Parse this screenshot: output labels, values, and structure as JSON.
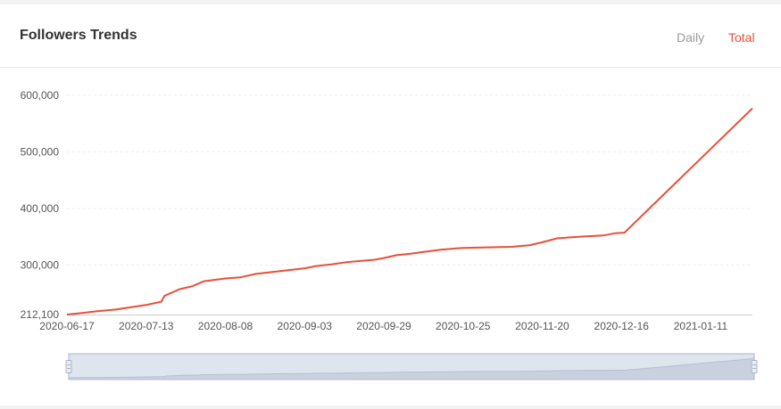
{
  "header": {
    "title": "Followers Trends",
    "toggles": [
      {
        "label": "Daily",
        "active": false
      },
      {
        "label": "Total",
        "active": true
      }
    ]
  },
  "colors": {
    "line": "#e8503a",
    "grid": "#eeeeee",
    "active_toggle": "#e8503a",
    "inactive_toggle": "#999999",
    "zoom_fill": "#dfe5ef",
    "zoom_border": "#a9b6cb"
  },
  "chart_data": {
    "type": "line",
    "title": "Followers Trends",
    "xlabel": "",
    "ylabel": "",
    "ylim": [
      212100,
      600000
    ],
    "y_ticks": [
      {
        "value": 212100,
        "label": "212,100"
      },
      {
        "value": 300000,
        "label": "300,000"
      },
      {
        "value": 400000,
        "label": "400,000"
      },
      {
        "value": 500000,
        "label": "500,000"
      },
      {
        "value": 600000,
        "label": "600,000"
      }
    ],
    "x_range": [
      "2020-06-17",
      "2021-01-28"
    ],
    "x_ticks": [
      "2020-06-17",
      "2020-07-13",
      "2020-08-08",
      "2020-09-03",
      "2020-09-29",
      "2020-10-25",
      "2020-11-20",
      "2020-12-16",
      "2021-01-11"
    ],
    "grid": true,
    "series": [
      {
        "values": [
          {
            "x": "2020-06-17",
            "y": 212100
          },
          {
            "x": "2020-06-22",
            "y": 215000
          },
          {
            "x": "2020-06-27",
            "y": 218000
          },
          {
            "x": "2020-07-03",
            "y": 221000
          },
          {
            "x": "2020-07-08",
            "y": 225000
          },
          {
            "x": "2020-07-13",
            "y": 229000
          },
          {
            "x": "2020-07-18",
            "y": 235000
          },
          {
            "x": "2020-07-19",
            "y": 245000
          },
          {
            "x": "2020-07-24",
            "y": 257000
          },
          {
            "x": "2020-07-28",
            "y": 262000
          },
          {
            "x": "2020-08-01",
            "y": 271000
          },
          {
            "x": "2020-08-08",
            "y": 276000
          },
          {
            "x": "2020-08-13",
            "y": 278000
          },
          {
            "x": "2020-08-18",
            "y": 284000
          },
          {
            "x": "2020-08-26",
            "y": 289000
          },
          {
            "x": "2020-09-03",
            "y": 294000
          },
          {
            "x": "2020-09-07",
            "y": 298000
          },
          {
            "x": "2020-09-12",
            "y": 301000
          },
          {
            "x": "2020-09-17",
            "y": 305000
          },
          {
            "x": "2020-09-26",
            "y": 309000
          },
          {
            "x": "2020-09-29",
            "y": 312000
          },
          {
            "x": "2020-10-03",
            "y": 317000
          },
          {
            "x": "2020-10-08",
            "y": 320000
          },
          {
            "x": "2020-10-12",
            "y": 323000
          },
          {
            "x": "2020-10-18",
            "y": 327000
          },
          {
            "x": "2020-10-25",
            "y": 330000
          },
          {
            "x": "2020-11-02",
            "y": 331000
          },
          {
            "x": "2020-11-10",
            "y": 332000
          },
          {
            "x": "2020-11-16",
            "y": 335000
          },
          {
            "x": "2020-11-20",
            "y": 340000
          },
          {
            "x": "2020-11-25",
            "y": 347000
          },
          {
            "x": "2020-12-03",
            "y": 350000
          },
          {
            "x": "2020-12-10",
            "y": 352000
          },
          {
            "x": "2020-12-14",
            "y": 356000
          },
          {
            "x": "2020-12-17",
            "y": 357000
          },
          {
            "x": "2021-01-28",
            "y": 577000
          }
        ]
      }
    ]
  }
}
